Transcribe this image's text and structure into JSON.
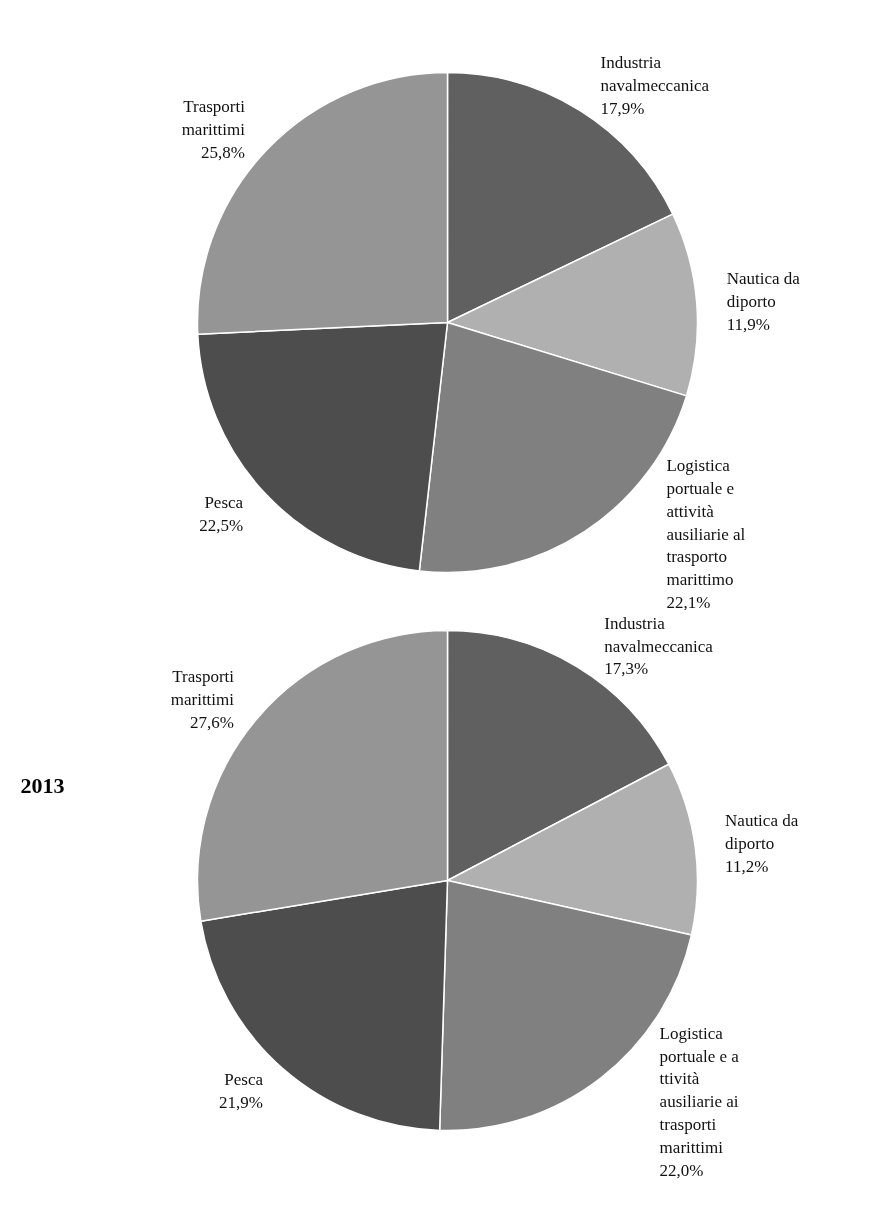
{
  "chart_data": [
    {
      "type": "pie",
      "categories": [
        "Industria navalmeccanica",
        "Nautica da diporto",
        "Logistica portuale e attività ausiliarie al trasporto marittimo",
        "Pesca",
        "Trasporti marittimi"
      ],
      "values": [
        17.9,
        11.9,
        22.1,
        22.5,
        25.8
      ],
      "colors": [
        "#606060",
        "#b0b0b0",
        "#808080",
        "#4d4d4d",
        "#959595"
      ],
      "value_labels": [
        "17,9%",
        "11,9%",
        "22,1%",
        "22,5%",
        "25,8%"
      ]
    },
    {
      "type": "pie",
      "title": "2013",
      "categories": [
        "Industria navalmeccanica",
        "Nautica da diporto",
        "Logistica portuale e a ttività ausiliarie ai trasporti marittimi",
        "Pesca",
        "Trasporti marittimi"
      ],
      "values": [
        17.3,
        11.2,
        22.0,
        21.9,
        27.6
      ],
      "colors": [
        "#606060",
        "#b0b0b0",
        "#808080",
        "#4d4d4d",
        "#959595"
      ],
      "value_labels": [
        "17,3%",
        "11,2%",
        "22,0%",
        "21,9%",
        "27,6%"
      ]
    }
  ]
}
